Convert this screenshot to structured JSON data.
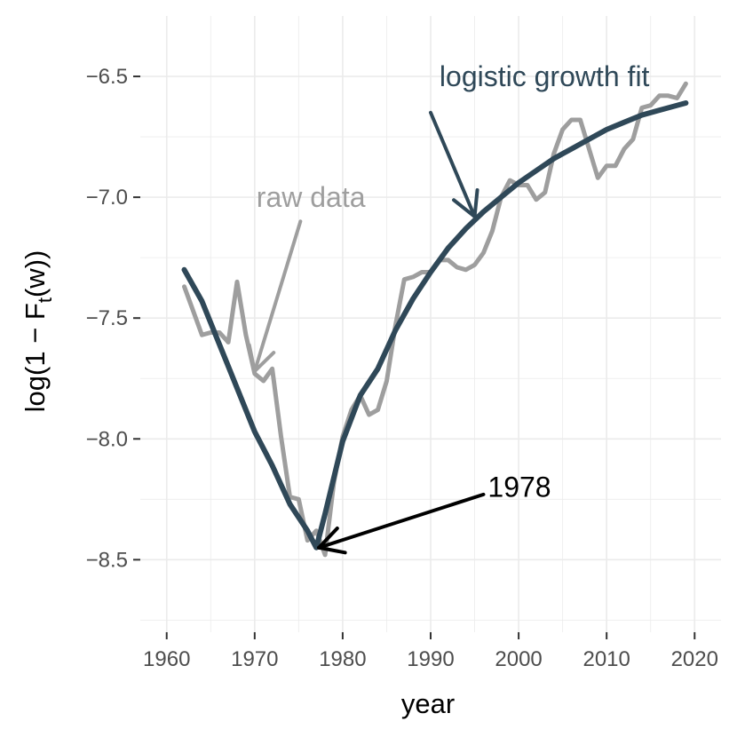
{
  "chart_data": {
    "type": "line",
    "title": "",
    "xlabel": "year",
    "ylabel_parts": [
      "log(1 − F",
      "t",
      "(w))"
    ],
    "xlim": [
      1962,
      2019
    ],
    "ylim": [
      -8.8,
      -6.25
    ],
    "x_ticks": [
      1960,
      1970,
      1980,
      1990,
      2000,
      2010,
      2020
    ],
    "x_tick_labels": [
      "1960",
      "1970",
      "1980",
      "1990",
      "2000",
      "2010",
      "2020"
    ],
    "y_ticks": [
      -6.5,
      -7.0,
      -7.5,
      -8.0,
      -8.5
    ],
    "y_tick_labels": [
      "−6.5",
      "−7.0",
      "−7.5",
      "−8.0",
      "−8.5"
    ],
    "grid": true,
    "colors": {
      "raw": "#9e9e9e",
      "fit": "#2f4858",
      "annotation_1978": "#000000",
      "grid": "#ebebeb",
      "tick_mark": "#333333"
    },
    "series": [
      {
        "name": "raw data",
        "x": [
          1962,
          1963,
          1964,
          1965,
          1966,
          1967,
          1968,
          1969,
          1970,
          1971,
          1972,
          1973,
          1974,
          1975,
          1976,
          1977,
          1978,
          1979,
          1980,
          1981,
          1982,
          1983,
          1984,
          1985,
          1986,
          1987,
          1988,
          1989,
          1990,
          1991,
          1992,
          1993,
          1994,
          1995,
          1996,
          1997,
          1998,
          1999,
          2000,
          2001,
          2002,
          2003,
          2004,
          2005,
          2006,
          2007,
          2008,
          2009,
          2010,
          2011,
          2012,
          2013,
          2014,
          2015,
          2016,
          2017,
          2018,
          2019
        ],
        "values": [
          -7.37,
          -7.47,
          -7.57,
          -7.56,
          -7.56,
          -7.6,
          -7.35,
          -7.57,
          -7.73,
          -7.76,
          -7.71,
          -7.99,
          -8.24,
          -8.25,
          -8.42,
          -8.38,
          -8.48,
          -8.18,
          -7.99,
          -7.88,
          -7.82,
          -7.9,
          -7.88,
          -7.76,
          -7.53,
          -7.34,
          -7.33,
          -7.31,
          -7.31,
          -7.26,
          -7.26,
          -7.29,
          -7.3,
          -7.28,
          -7.23,
          -7.14,
          -7.0,
          -6.93,
          -6.95,
          -6.95,
          -7.01,
          -6.98,
          -6.82,
          -6.72,
          -6.68,
          -6.68,
          -6.8,
          -6.92,
          -6.87,
          -6.87,
          -6.8,
          -6.76,
          -6.63,
          -6.62,
          -6.58,
          -6.58,
          -6.59,
          -6.53
        ]
      },
      {
        "name": "logistic growth fit",
        "x": [
          1962,
          1964,
          1966,
          1968,
          1970,
          1972,
          1974,
          1976,
          1977,
          1978,
          1980,
          1982,
          1984,
          1986,
          1988,
          1990,
          1992,
          1994,
          1996,
          1998,
          2000,
          2002,
          2004,
          2006,
          2008,
          2010,
          2012,
          2014,
          2016,
          2019
        ],
        "values": [
          -7.3,
          -7.43,
          -7.61,
          -7.79,
          -7.97,
          -8.11,
          -8.27,
          -8.38,
          -8.45,
          -8.31,
          -8.01,
          -7.82,
          -7.71,
          -7.55,
          -7.42,
          -7.31,
          -7.21,
          -7.13,
          -7.06,
          -7.0,
          -6.94,
          -6.89,
          -6.84,
          -6.8,
          -6.76,
          -6.72,
          -6.69,
          -6.66,
          -6.64,
          -6.61
        ]
      }
    ],
    "annotations": [
      {
        "key": "raw",
        "text": "raw data",
        "from": [
          1975.2,
          -7.1
        ],
        "to": [
          1970.0,
          -7.72
        ],
        "label_at": [
          1970.2,
          -7.0
        ]
      },
      {
        "key": "fit",
        "text": "logistic growth fit",
        "from": [
          1990.0,
          -6.65
        ],
        "to": [
          1995.0,
          -7.08
        ],
        "label_at": [
          1991.0,
          -6.5
        ]
      },
      {
        "key": "annotation_1978",
        "text": "1978",
        "from": [
          1996.0,
          -8.23
        ],
        "to": [
          1977.3,
          -8.45
        ],
        "label_at": [
          1996.5,
          -8.2
        ]
      }
    ]
  }
}
